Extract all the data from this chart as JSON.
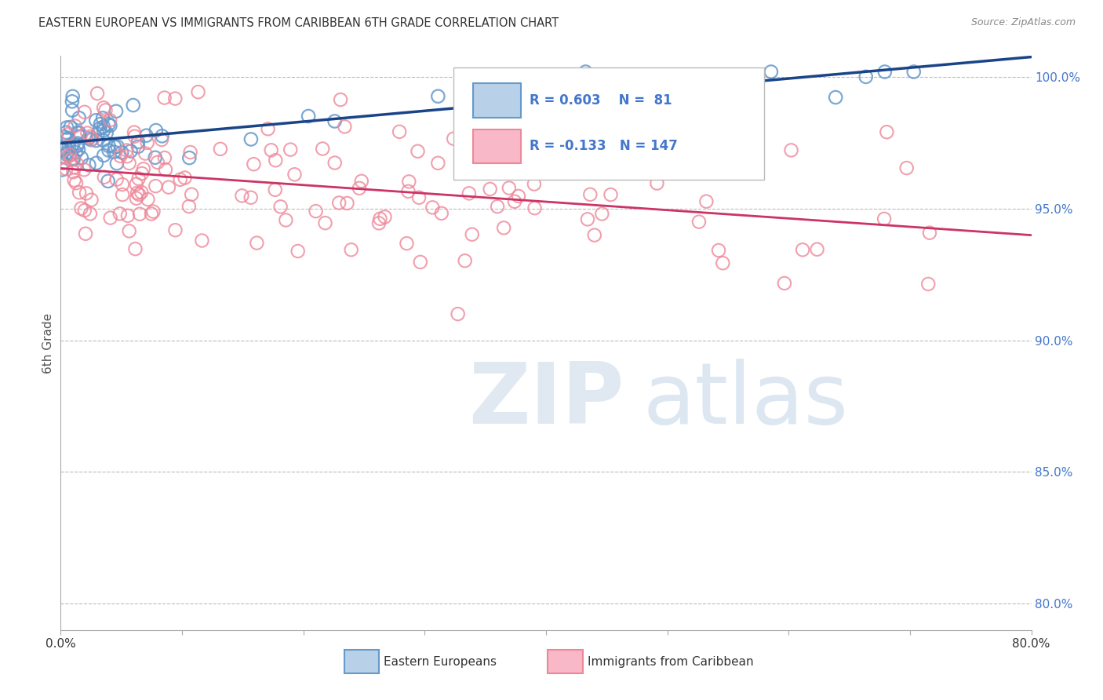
{
  "title": "EASTERN EUROPEAN VS IMMIGRANTS FROM CARIBBEAN 6TH GRADE CORRELATION CHART",
  "source": "Source: ZipAtlas.com",
  "ylabel": "6th Grade",
  "right_yticks": [
    1.0,
    0.95,
    0.9,
    0.85,
    0.8
  ],
  "right_ytick_labels": [
    "100.0%",
    "95.0%",
    "90.0%",
    "85.0%",
    "80.0%"
  ],
  "blue_R": 0.603,
  "blue_N": 81,
  "pink_R": -0.133,
  "pink_N": 147,
  "blue_label": "Eastern Europeans",
  "pink_label": "Immigrants from Caribbean",
  "blue_color": "#6699cc",
  "pink_color": "#ee8899",
  "blue_line_color": "#1a4488",
  "pink_line_color": "#cc3366",
  "background_color": "#ffffff",
  "title_color": "#333333",
  "right_axis_color": "#4477cc",
  "grid_color": "#bbbbbb",
  "xlim": [
    0.0,
    0.8
  ],
  "ylim": [
    0.79,
    1.008
  ]
}
